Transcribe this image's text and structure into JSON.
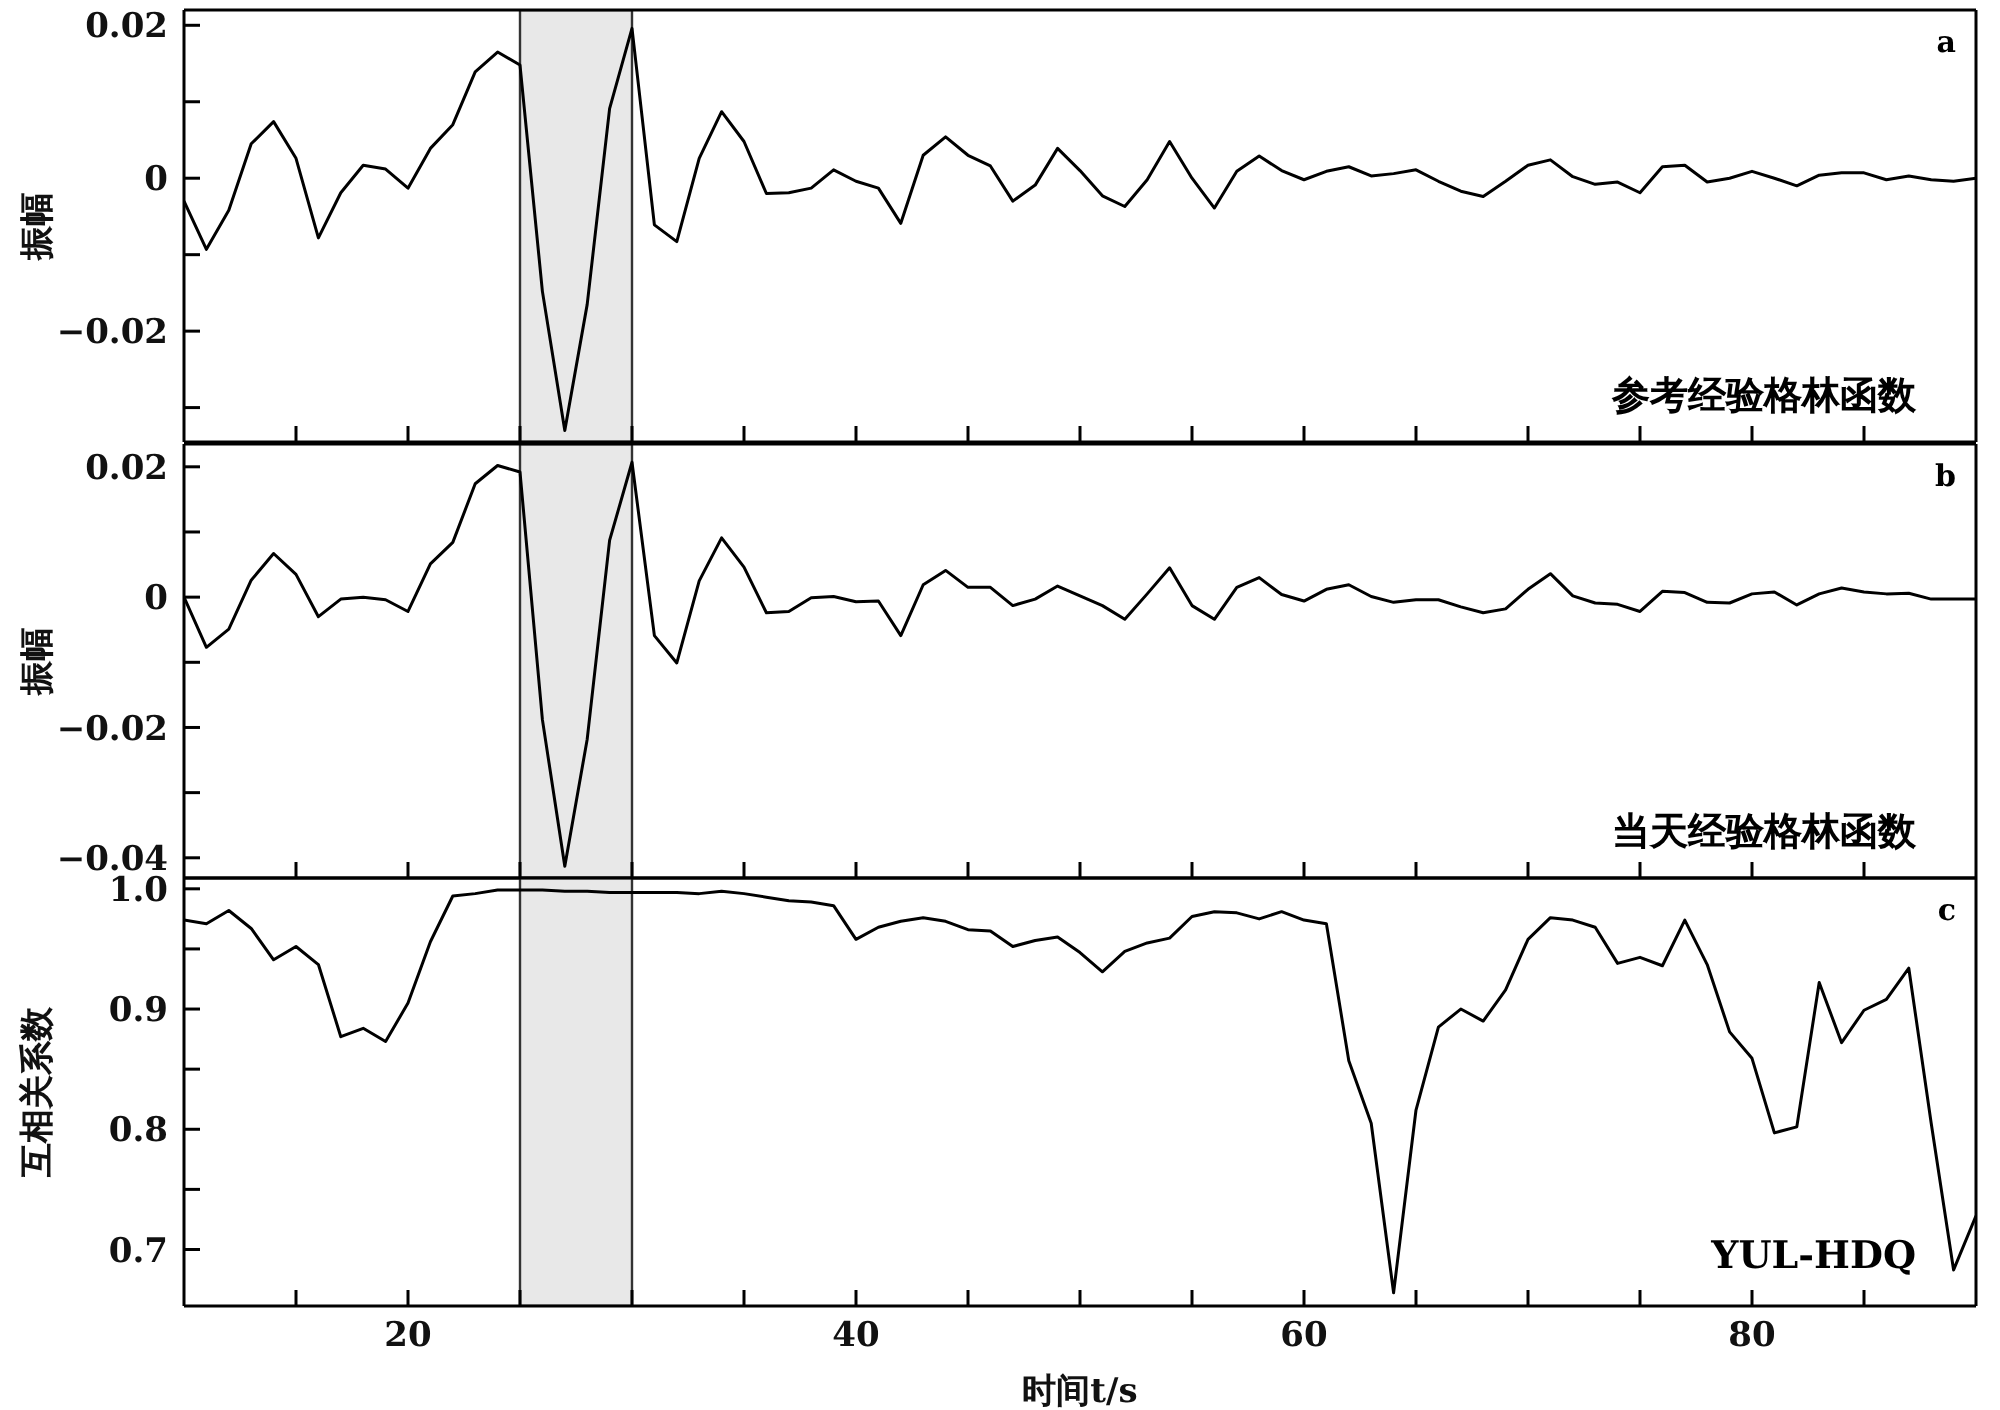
{
  "chart_data": [
    {
      "type": "line",
      "ylabel": "振幅",
      "annotations": [
        "a",
        "参考经验格林函数"
      ],
      "xlim": [
        10,
        90
      ],
      "xticks": [
        {
          "value": 15,
          "label": null
        },
        20,
        {
          "value": 25,
          "label": null
        },
        {
          "value": 30,
          "label": null
        },
        {
          "value": 35,
          "label": null
        },
        40,
        {
          "value": 45,
          "label": null
        },
        {
          "value": 50,
          "label": null
        },
        {
          "value": 55,
          "label": null
        },
        60,
        {
          "value": 65,
          "label": null
        },
        {
          "value": 70,
          "label": null
        },
        {
          "value": 75,
          "label": null
        },
        80,
        {
          "value": 85,
          "label": null
        }
      ],
      "ylim": [
        -0.0345,
        0.022
      ],
      "yticks": [
        {
          "value": -0.03,
          "label": null
        },
        {
          "value": -0.02,
          "label": "−0.02"
        },
        {
          "value": -0.01,
          "label": null
        },
        0,
        {
          "value": 0.01,
          "label": null
        },
        0.02
      ],
      "tick_labels": "y",
      "x": [
        10,
        11,
        12,
        13,
        14,
        15,
        16,
        17,
        18,
        19,
        20,
        21,
        22,
        23,
        24,
        25,
        26,
        27,
        28,
        29,
        30,
        31,
        32,
        33,
        34,
        35,
        36,
        37,
        38,
        39,
        40,
        41,
        42,
        43,
        44,
        45,
        46,
        47,
        48,
        49,
        50,
        51,
        52,
        53,
        54,
        55,
        56,
        57,
        58,
        59,
        60,
        61,
        62,
        63,
        64,
        65,
        66,
        67,
        68,
        69,
        70,
        71,
        72,
        73,
        74,
        75,
        76,
        77,
        78,
        79,
        80,
        81,
        82,
        83,
        84,
        85,
        86,
        87,
        88,
        89,
        90
      ],
      "series": [
        {
          "color": "#000000",
          "values": [
            -0.003,
            -0.0093,
            -0.0042,
            0.0045,
            0.0074,
            0.0026,
            -0.0078,
            -0.0019,
            0.0017,
            0.0012,
            -0.0013,
            0.0039,
            0.007,
            0.0139,
            0.0165,
            0.0148,
            -0.0148,
            -0.033,
            -0.0165,
            0.0091,
            0.0196,
            -0.0061,
            -0.0083,
            0.0026,
            0.0087,
            0.0048,
            -0.002,
            -0.0019,
            -0.0013,
            0.0011,
            -0.0004,
            -0.0013,
            -0.0059,
            0.003,
            0.0054,
            0.003,
            0.0016,
            -0.003,
            -0.0009,
            0.0039,
            0.001,
            -0.0023,
            -0.0037,
            -0.0002,
            0.0048,
            0,
            -0.0039,
            0.0009,
            0.0029,
            0.001,
            -0.0002,
            0.0009,
            0.0015,
            0.0003,
            0.0006,
            0.0011,
            -0.0004,
            -0.0017,
            -0.0024,
            -0.0004,
            0.0017,
            0.0024,
            0.0002,
            -0.0008,
            -0.0005,
            -0.0019,
            0.0015,
            0.0017,
            -0.0005,
            0,
            0.0009,
            0,
            -0.001,
            0.0004,
            0.0007,
            0.0007,
            -0.0002,
            0.0003,
            -0.0002,
            -0.0004,
            0
          ]
        }
      ],
      "bands": [
        {
          "axis": "x",
          "from": 25,
          "to": 30,
          "color": "#e8e8e8"
        }
      ]
    },
    {
      "type": "line",
      "ylabel": "振幅",
      "annotations": [
        "b",
        "当天经验格林函数"
      ],
      "xlim": [
        10,
        90
      ],
      "xticks": [
        {
          "value": 15,
          "label": null
        },
        20,
        {
          "value": 25,
          "label": null
        },
        {
          "value": 30,
          "label": null
        },
        {
          "value": 35,
          "label": null
        },
        40,
        {
          "value": 45,
          "label": null
        },
        {
          "value": 50,
          "label": null
        },
        {
          "value": 55,
          "label": null
        },
        60,
        {
          "value": 65,
          "label": null
        },
        {
          "value": 70,
          "label": null
        },
        {
          "value": 75,
          "label": null
        },
        80,
        {
          "value": 85,
          "label": null
        }
      ],
      "ylim": [
        -0.0431,
        0.0235
      ],
      "yticks": [
        {
          "value": -0.04,
          "label": "−0.04"
        },
        {
          "value": -0.03,
          "label": null
        },
        {
          "value": -0.02,
          "label": "−0.02"
        },
        {
          "value": -0.01,
          "label": null
        },
        0,
        {
          "value": 0.01,
          "label": null
        },
        0.02
      ],
      "tick_labels": "y",
      "x": [
        10,
        11,
        12,
        13,
        14,
        15,
        16,
        17,
        18,
        19,
        20,
        21,
        22,
        23,
        24,
        25,
        26,
        27,
        28,
        29,
        30,
        31,
        32,
        33,
        34,
        35,
        36,
        37,
        38,
        39,
        40,
        41,
        42,
        43,
        44,
        45,
        46,
        47,
        48,
        49,
        50,
        51,
        52,
        53,
        54,
        55,
        56,
        57,
        58,
        59,
        60,
        61,
        62,
        63,
        64,
        65,
        66,
        67,
        68,
        69,
        70,
        71,
        72,
        73,
        74,
        75,
        76,
        77,
        78,
        79,
        80,
        81,
        82,
        83,
        84,
        85,
        86,
        87,
        88,
        89,
        90
      ],
      "series": [
        {
          "color": "#000000",
          "values": [
            0,
            -0.0077,
            -0.0049,
            0.0026,
            0.0067,
            0.0035,
            -0.003,
            -0.0003,
            0,
            -0.0004,
            -0.0022,
            0.0051,
            0.0084,
            0.0174,
            0.0202,
            0.0192,
            -0.0188,
            -0.0413,
            -0.0218,
            0.0087,
            0.0207,
            -0.0059,
            -0.0101,
            0.0025,
            0.0091,
            0.0046,
            -0.0024,
            -0.0022,
            -0.0001,
            0.0001,
            -0.0007,
            -0.0006,
            -0.0059,
            0.0019,
            0.0041,
            0.0015,
            0.0015,
            -0.0013,
            -0.0003,
            0.0017,
            0.0002,
            -0.0013,
            -0.0034,
            0.0005,
            0.0045,
            -0.0013,
            -0.0034,
            0.0015,
            0.003,
            0.0004,
            -0.0006,
            0.0012,
            0.0019,
            0.0001,
            -0.0008,
            -0.0004,
            -0.0004,
            -0.0015,
            -0.0024,
            -0.0018,
            0.0012,
            0.0036,
            0.0002,
            -0.0009,
            -0.0011,
            -0.0022,
            0.0009,
            0.0007,
            -0.0008,
            -0.0009,
            0.0005,
            0.0008,
            -0.0012,
            0.0005,
            0.0014,
            0.0008,
            0.0005,
            0.0006,
            -0.0003,
            -0.0003,
            -0.0003
          ]
        }
      ],
      "bands": [
        {
          "axis": "x",
          "from": 25,
          "to": 30,
          "color": "#e8e8e8"
        }
      ]
    },
    {
      "type": "line",
      "xlabel": "时间t/s",
      "ylabel": "互相关系数",
      "annotations": [
        "c",
        "YUL-HDQ"
      ],
      "xlim": [
        10,
        90
      ],
      "xticks": [
        {
          "value": 15,
          "label": null
        },
        20,
        {
          "value": 25,
          "label": null
        },
        {
          "value": 30,
          "label": null
        },
        {
          "value": 35,
          "label": null
        },
        40,
        {
          "value": 45,
          "label": null
        },
        {
          "value": 50,
          "label": null
        },
        {
          "value": 55,
          "label": null
        },
        60,
        {
          "value": 65,
          "label": null
        },
        {
          "value": 70,
          "label": null
        },
        {
          "value": 75,
          "label": null
        },
        80,
        {
          "value": 85,
          "label": null
        }
      ],
      "ylim": [
        0.653,
        1.009
      ],
      "yticks": [
        0.7,
        {
          "value": 0.75,
          "label": null
        },
        0.8,
        {
          "value": 0.85,
          "label": null
        },
        0.9,
        {
          "value": 0.95,
          "label": null
        },
        {
          "value": 1,
          "label": "1.0"
        }
      ],
      "x": [
        10,
        11,
        12,
        13,
        14,
        15,
        16,
        17,
        18,
        19,
        20,
        21,
        22,
        23,
        24,
        25,
        26,
        27,
        28,
        29,
        30,
        31,
        32,
        33,
        34,
        35,
        36,
        37,
        38,
        39,
        40,
        41,
        42,
        43,
        44,
        45,
        46,
        47,
        48,
        49,
        50,
        51,
        52,
        53,
        54,
        55,
        56,
        57,
        58,
        59,
        60,
        61,
        62,
        63,
        64,
        65,
        66,
        67,
        68,
        69,
        70,
        71,
        72,
        73,
        74,
        75,
        76,
        77,
        78,
        79,
        80,
        81,
        82,
        83,
        84,
        85,
        86,
        87,
        88,
        89,
        90
      ],
      "series": [
        {
          "color": "#000000",
          "values": [
            0.974,
            0.971,
            0.982,
            0.967,
            0.941,
            0.952,
            0.937,
            0.877,
            0.884,
            0.873,
            0.905,
            0.956,
            0.994,
            0.996,
            0.999,
            0.999,
            0.999,
            0.998,
            0.998,
            0.997,
            0.997,
            0.997,
            0.997,
            0.996,
            0.998,
            0.996,
            0.993,
            0.99,
            0.989,
            0.986,
            0.958,
            0.968,
            0.973,
            0.976,
            0.973,
            0.966,
            0.965,
            0.952,
            0.957,
            0.96,
            0.947,
            0.931,
            0.948,
            0.955,
            0.959,
            0.977,
            0.981,
            0.98,
            0.975,
            0.981,
            0.974,
            0.971,
            0.857,
            0.805,
            0.664,
            0.816,
            0.885,
            0.9,
            0.89,
            0.916,
            0.958,
            0.976,
            0.974,
            0.968,
            0.938,
            0.943,
            0.936,
            0.974,
            0.937,
            0.881,
            0.859,
            0.797,
            0.802,
            0.922,
            0.872,
            0.899,
            0.908,
            0.934,
            0.805,
            0.683,
            0.728
          ]
        }
      ],
      "bands": [
        {
          "axis": "x",
          "from": 25,
          "to": 30,
          "color": "#e8e8e8"
        }
      ]
    }
  ]
}
